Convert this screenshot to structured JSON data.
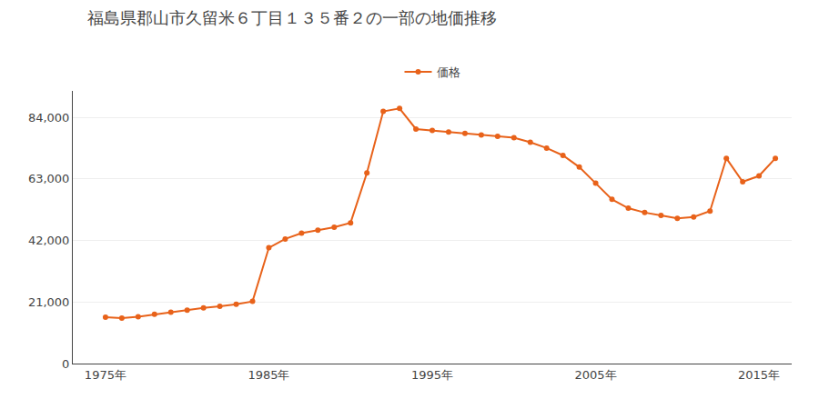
{
  "chart_data": {
    "type": "line",
    "title": "福島県郡山市久留米６丁目１３５番２の一部の地価推移",
    "x": [
      1975,
      1976,
      1977,
      1978,
      1979,
      1980,
      1981,
      1982,
      1983,
      1984,
      1985,
      1986,
      1987,
      1988,
      1989,
      1990,
      1991,
      1992,
      1993,
      1994,
      1995,
      1996,
      1997,
      1998,
      1999,
      2000,
      2001,
      2002,
      2003,
      2004,
      2005,
      2006,
      2007,
      2008,
      2009,
      2010,
      2011,
      2012,
      2013,
      2014,
      2015,
      2016
    ],
    "series": [
      {
        "name": "価格",
        "color": "#E8621A",
        "marker": "circle",
        "line_style": "solid",
        "values": [
          15800,
          15500,
          16000,
          16800,
          17500,
          18200,
          19000,
          19500,
          20200,
          21200,
          39500,
          42500,
          44500,
          45500,
          46500,
          48000,
          65000,
          86000,
          87000,
          80000,
          79500,
          79000,
          78500,
          78000,
          77500,
          77000,
          75500,
          73500,
          71000,
          67000,
          61500,
          56000,
          53000,
          51500,
          50500,
          49500,
          50000,
          52000,
          70000,
          62000,
          64000,
          70000
        ]
      }
    ],
    "xlim": [
      1973,
      2017
    ],
    "xticks": [
      {
        "value": 1975,
        "label": "1975年"
      },
      {
        "value": 1985,
        "label": "1985年"
      },
      {
        "value": 1995,
        "label": "1995年"
      },
      {
        "value": 2005,
        "label": "2005年"
      },
      {
        "value": 2015,
        "label": "2015年"
      }
    ],
    "ylim": [
      0,
      93000
    ],
    "yticks": [
      0,
      {
        "value": 21000,
        "label": "21,000"
      },
      {
        "value": 42000,
        "label": "42,000"
      },
      {
        "value": 63000,
        "label": "63,000"
      },
      {
        "value": 84000,
        "label": "84,000"
      }
    ],
    "grid": true,
    "legend": "top"
  }
}
